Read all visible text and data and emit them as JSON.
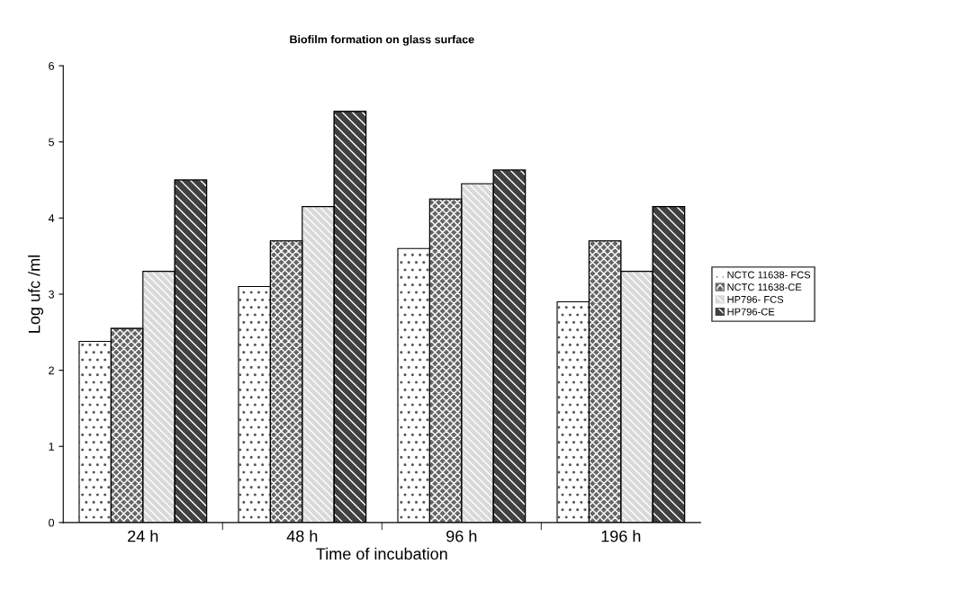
{
  "chart_data": {
    "type": "bar",
    "title": "Biofilm formation on glass surface",
    "xlabel": "Time of incubation",
    "ylabel": "Log ufc /ml",
    "categories": [
      "24 h",
      "48 h",
      "96 h",
      "196 h"
    ],
    "series": [
      {
        "name": "NCTC 11638- FCS",
        "color": "#ffffff",
        "values": [
          2.38,
          3.1,
          3.6,
          2.9
        ]
      },
      {
        "name": "NCTC 11638-CE",
        "color": "#666666",
        "values": [
          2.55,
          3.7,
          4.25,
          3.7
        ]
      },
      {
        "name": "HP796- FCS",
        "color": "#d9d9d9",
        "values": [
          3.3,
          4.15,
          4.45,
          3.3
        ]
      },
      {
        "name": "HP796-CE",
        "color": "#404040",
        "values": [
          4.5,
          5.4,
          4.63,
          4.15
        ]
      }
    ],
    "ylim": [
      0,
      6
    ],
    "yticks": [
      0,
      1,
      2,
      3,
      4,
      5,
      6
    ],
    "grid": false,
    "legend": "right"
  }
}
